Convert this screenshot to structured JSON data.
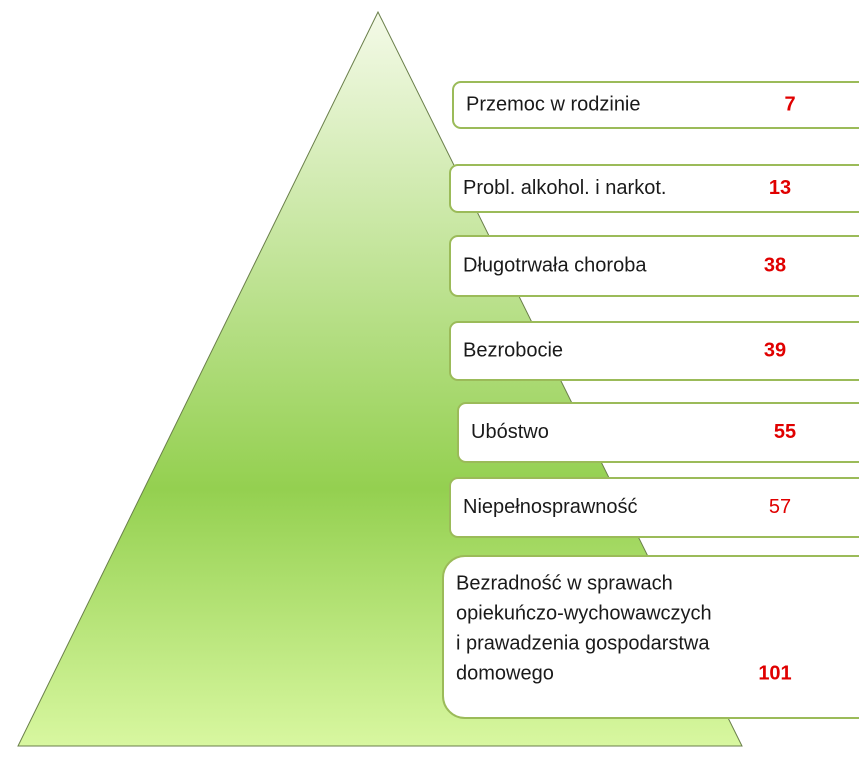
{
  "items": [
    {
      "lines": [
        "Przemoc w rodzinie"
      ],
      "value": 7,
      "bold": true
    },
    {
      "lines": [
        "Probl. alkohol. i narkot."
      ],
      "value": 13,
      "bold": true
    },
    {
      "lines": [
        "Długotrwała choroba"
      ],
      "value": 38,
      "bold": true
    },
    {
      "lines": [
        "Bezrobocie"
      ],
      "value": 39,
      "bold": true
    },
    {
      "lines": [
        "Ubóstwo"
      ],
      "value": 55,
      "bold": true
    },
    {
      "lines": [
        "Niepełnosprawność"
      ],
      "value": 57,
      "bold": false
    },
    {
      "lines": [
        "Bezradność w sprawach",
        "opiekuńczo-wychowawczych",
        "i prawadzenia gospodarstwa",
        "domowego"
      ],
      "value": 101,
      "bold": true
    }
  ]
}
